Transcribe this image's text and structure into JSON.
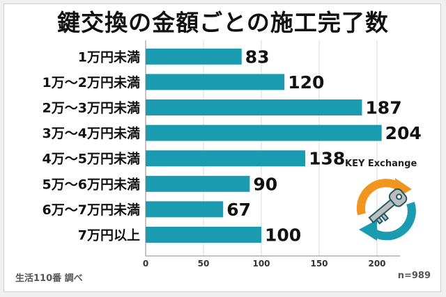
{
  "chart_data": {
    "type": "bar",
    "orientation": "horizontal",
    "title": "鍵交換の金額ごとの施工完了数",
    "categories": [
      "1万円未満",
      "1万～2万円未満",
      "2万～3万円未満",
      "3万～4万円未満",
      "4万～5万円未満",
      "5万～6万円未満",
      "6万～7万円未満",
      "7万円以上"
    ],
    "values": [
      83,
      120,
      187,
      204,
      138,
      90,
      67,
      100
    ],
    "xlim": [
      0,
      220
    ],
    "xticks": [
      0,
      50,
      100,
      150,
      200
    ],
    "xlabel": "",
    "ylabel": "",
    "bar_color": "#1b9bb0"
  },
  "footer": {
    "source": "生活110番 調べ",
    "sample_size": "n=989"
  },
  "logo": {
    "text": "KEY Exchange",
    "icon": "key-exchange-icon",
    "colors": {
      "orange": "#f0961e",
      "teal": "#1b9bb0",
      "key": "#bdbdbd"
    }
  }
}
